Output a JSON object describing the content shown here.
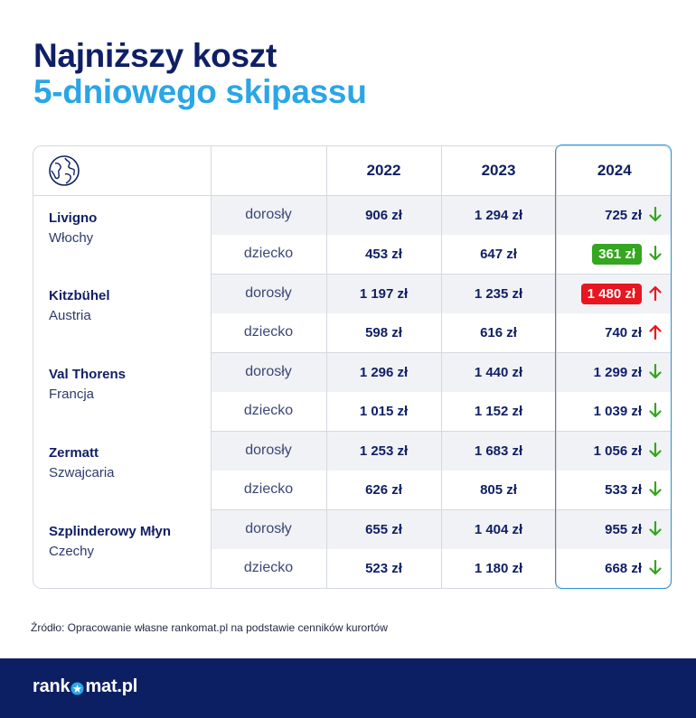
{
  "title": {
    "line1": "Najniższy koszt",
    "line2": "5-dniowego skipassu"
  },
  "table": {
    "header_icon": "globe-icon",
    "years": [
      "2022",
      "2023",
      "2024"
    ],
    "resorts": [
      {
        "name": "Livigno",
        "country": "Włochy",
        "rows": [
          {
            "type": "dorosły",
            "y2022": "906 zł",
            "y2023": "1 294 zł",
            "y2024": "725 zł",
            "trend": "down",
            "highlight": "none"
          },
          {
            "type": "dziecko",
            "y2022": "453 zł",
            "y2023": "647 zł",
            "y2024": "361 zł",
            "trend": "down",
            "highlight": "green"
          }
        ]
      },
      {
        "name": "Kitzbühel",
        "country": "Austria",
        "rows": [
          {
            "type": "dorosły",
            "y2022": "1 197 zł",
            "y2023": "1 235 zł",
            "y2024": "1 480 zł",
            "trend": "up",
            "highlight": "red"
          },
          {
            "type": "dziecko",
            "y2022": "598 zł",
            "y2023": "616 zł",
            "y2024": "740 zł",
            "trend": "up",
            "highlight": "none"
          }
        ]
      },
      {
        "name": "Val Thorens",
        "country": "Francja",
        "rows": [
          {
            "type": "dorosły",
            "y2022": "1 296 zł",
            "y2023": "1 440 zł",
            "y2024": "1 299 zł",
            "trend": "down",
            "highlight": "none"
          },
          {
            "type": "dziecko",
            "y2022": "1 015 zł",
            "y2023": "1 152 zł",
            "y2024": "1 039 zł",
            "trend": "down",
            "highlight": "none"
          }
        ]
      },
      {
        "name": "Zermatt",
        "country": "Szwajcaria",
        "rows": [
          {
            "type": "dorosły",
            "y2022": "1 253 zł",
            "y2023": "1 683 zł",
            "y2024": "1 056 zł",
            "trend": "down",
            "highlight": "none"
          },
          {
            "type": "dziecko",
            "y2022": "626 zł",
            "y2023": "805 zł",
            "y2024": "533 zł",
            "trend": "down",
            "highlight": "none"
          }
        ]
      },
      {
        "name": "Szplinderowy Młyn",
        "country": "Czechy",
        "rows": [
          {
            "type": "dorosły",
            "y2022": "655 zł",
            "y2023": "1 404 zł",
            "y2024": "955 zł",
            "trend": "down",
            "highlight": "none"
          },
          {
            "type": "dziecko",
            "y2022": "523 zł",
            "y2023": "1 180 zł",
            "y2024": "668 zł",
            "trend": "down",
            "highlight": "none"
          }
        ]
      }
    ]
  },
  "source": "Źródło: Opracowanie własne rankomat.pl na podstawie cenników kurortów",
  "footer": {
    "logo_left": "rank",
    "logo_right": "mat.pl",
    "logo_icon": "star-icon"
  },
  "colors": {
    "navy": "#0f1f66",
    "accent_blue": "#2aa6e6",
    "down_green": "#34a61f",
    "up_red": "#e8161f",
    "footer_bg": "#0c1f62"
  }
}
